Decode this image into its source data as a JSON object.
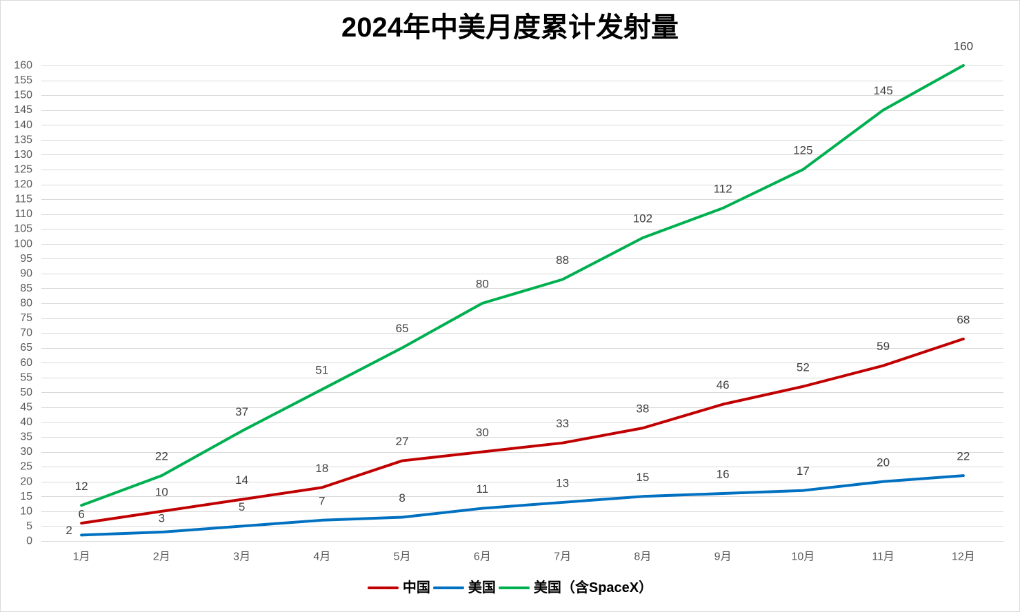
{
  "chart_data": {
    "type": "line",
    "title": "2024年中美月度累计发射量",
    "categories": [
      "1月",
      "2月",
      "3月",
      "4月",
      "5月",
      "6月",
      "7月",
      "8月",
      "9月",
      "10月",
      "11月",
      "12月"
    ],
    "ylim": [
      0,
      160
    ],
    "yticks": [
      0,
      5,
      10,
      15,
      20,
      25,
      30,
      35,
      40,
      45,
      50,
      55,
      60,
      65,
      70,
      75,
      80,
      85,
      90,
      95,
      100,
      105,
      110,
      115,
      120,
      125,
      130,
      135,
      140,
      145,
      150,
      155,
      160
    ],
    "grid": true,
    "legend": "bottom",
    "data_labels": true,
    "series": [
      {
        "name": "中国",
        "color": "#C00000",
        "values": [
          6,
          10,
          14,
          18,
          27,
          30,
          33,
          38,
          46,
          52,
          59,
          68
        ]
      },
      {
        "name": "美国",
        "color": "#0070C0",
        "values": [
          2,
          3,
          5,
          7,
          8,
          11,
          13,
          15,
          16,
          17,
          20,
          22
        ]
      },
      {
        "name": "美国（含SpaceX）",
        "color": "#00B050",
        "values": [
          12,
          22,
          37,
          51,
          65,
          80,
          88,
          102,
          112,
          125,
          145,
          160
        ]
      }
    ]
  }
}
